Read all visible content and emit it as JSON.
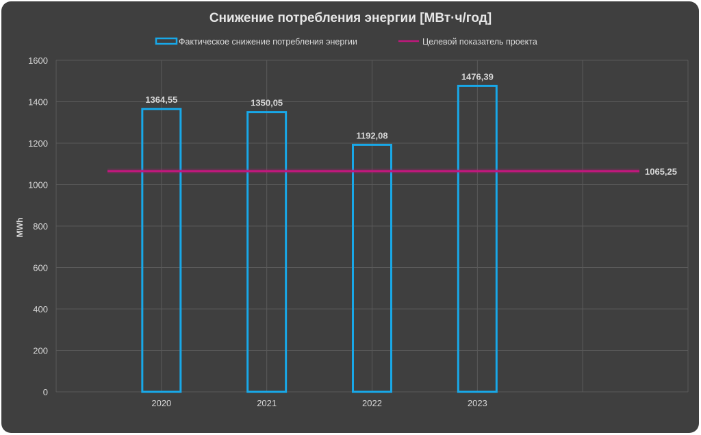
{
  "chart_data": {
    "type": "bar",
    "title": "Снижение потребления энергии [МВт·ч/год]",
    "ylabel": "MWh",
    "xlabel": "",
    "categories": [
      "2020",
      "2021",
      "2022",
      "2023"
    ],
    "series": [
      {
        "name": "Фактическое снижение потребления энергии",
        "type": "bar",
        "values": [
          1364.55,
          1350.05,
          1192.08,
          1476.39
        ],
        "labels": [
          "1364,55",
          "1350,05",
          "1192,08",
          "1476,39"
        ],
        "color": "#18a8e8"
      },
      {
        "name": "Целевой показатель проекта",
        "type": "line",
        "value": 1065.25,
        "label": "1065,25",
        "color": "#c0187c"
      }
    ],
    "ylim": [
      0,
      1600
    ],
    "yticks": [
      "0",
      "200",
      "400",
      "600",
      "800",
      "1000",
      "1200",
      "1400",
      "1600"
    ],
    "grid": true,
    "legend": "top"
  },
  "colors": {
    "background": "#3f3f3f",
    "text": "#d9d9d9",
    "grid": "#5a5a5a"
  }
}
